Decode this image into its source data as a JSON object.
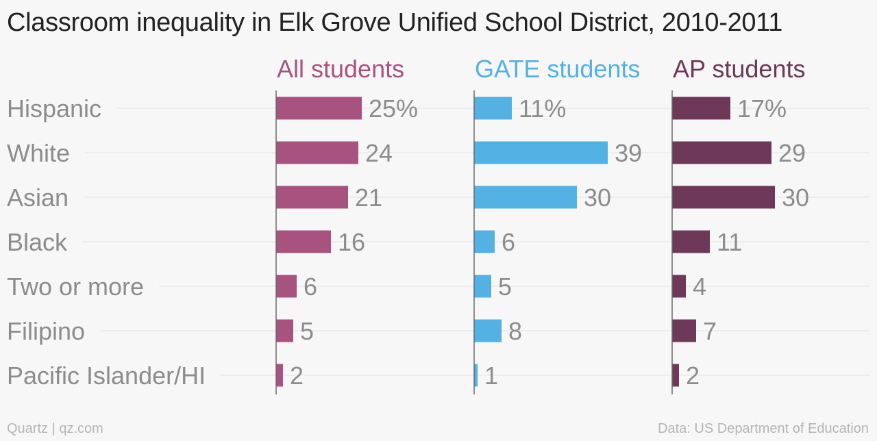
{
  "title": "Classroom inequality in Elk Grove Unified School District, 2010-2011",
  "footer": {
    "source_left": "Quartz | qz.com",
    "source_right": "Data: US Department of Education"
  },
  "colors": {
    "all_students": "#a8527f",
    "gate_students": "#53b1e3",
    "ap_students": "#6e3858",
    "label_text": "#8c8c8c",
    "gridline": "#e3e3e3",
    "baseline": "#6a6a6a"
  },
  "chart_data": {
    "type": "bar",
    "orientation": "horizontal",
    "categories": [
      "Hispanic",
      "White",
      "Asian",
      "Black",
      "Two or more",
      "Filipino",
      "Pacific Islander/HI"
    ],
    "series": [
      {
        "name": "All students",
        "values": [
          25,
          24,
          21,
          16,
          6,
          5,
          2
        ],
        "value_labels": [
          "25%",
          "24",
          "21",
          "16",
          "6",
          "5",
          "2"
        ]
      },
      {
        "name": "GATE students",
        "values": [
          11,
          39,
          30,
          6,
          5,
          8,
          1
        ],
        "value_labels": [
          "11%",
          "39",
          "30",
          "6",
          "5",
          "8",
          "1"
        ]
      },
      {
        "name": "AP students",
        "values": [
          17,
          29,
          30,
          11,
          4,
          7,
          2
        ],
        "value_labels": [
          "17%",
          "29",
          "30",
          "11",
          "4",
          "7",
          "2"
        ]
      }
    ],
    "unit": "%",
    "xlim": [
      0,
      40
    ],
    "grid": true,
    "legend": "panel headers"
  }
}
